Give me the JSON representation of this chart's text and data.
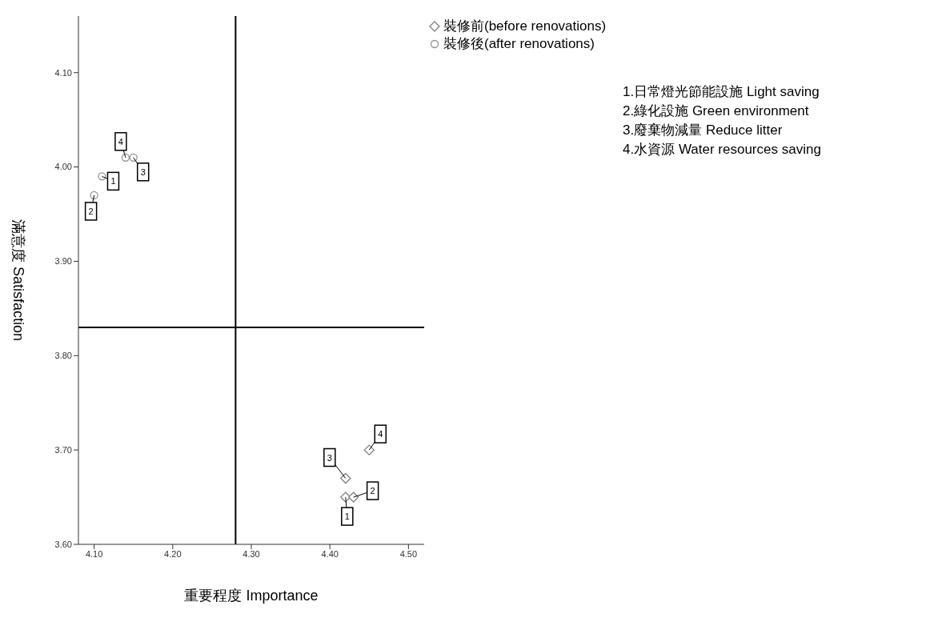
{
  "chart_data": {
    "type": "scatter",
    "xlabel": "重要程度  Importance",
    "ylabel": "滿意度 Satisfaction",
    "xlim": [
      4.08,
      4.52
    ],
    "xticks": [
      {
        "value": 4.1,
        "label": "4.10"
      },
      {
        "value": 4.2,
        "label": "4.20"
      },
      {
        "value": 4.3,
        "label": "4.30"
      },
      {
        "value": 4.4,
        "label": "4.40"
      },
      {
        "value": 4.5,
        "label": "4.50"
      }
    ],
    "ylim": [
      3.6,
      4.16
    ],
    "yticks": [
      {
        "value": 3.6,
        "label": "3.60"
      },
      {
        "value": 3.7,
        "label": "3.70"
      },
      {
        "value": 3.8,
        "label": "3.80"
      },
      {
        "value": 3.9,
        "label": "3.90"
      },
      {
        "value": 4.0,
        "label": "4.00"
      },
      {
        "value": 4.1,
        "label": "4.10"
      }
    ],
    "series": [
      {
        "name": "裝修前(before renovations)",
        "color": "#808080",
        "marker": "diamond",
        "x": [
          4.42,
          4.43,
          4.42,
          4.45
        ],
        "values": [
          3.65,
          3.65,
          3.67,
          3.7
        ]
      },
      {
        "name": "裝修後(after renovations)",
        "color": "#909090",
        "marker": "circle",
        "x": [
          4.11,
          4.1,
          4.15,
          4.14
        ],
        "values": [
          3.99,
          3.97,
          4.01,
          4.01
        ]
      }
    ],
    "ref_lines": [
      {
        "axis": "x",
        "value": 4.28,
        "color": "#000000"
      },
      {
        "axis": "y",
        "value": 3.83,
        "color": "#000000"
      }
    ],
    "grid": false,
    "legend": "top right",
    "annotations": [
      {
        "text": "1",
        "x": 4.42,
        "y": 3.65
      },
      {
        "text": "2",
        "x": 4.43,
        "y": 3.65
      },
      {
        "text": "3",
        "x": 4.42,
        "y": 3.67
      },
      {
        "text": "4",
        "x": 4.45,
        "y": 3.7
      },
      {
        "text": "1",
        "x": 4.11,
        "y": 3.99
      },
      {
        "text": "2",
        "x": 4.1,
        "y": 3.97
      },
      {
        "text": "3",
        "x": 4.15,
        "y": 4.01
      },
      {
        "text": "4",
        "x": 4.14,
        "y": 4.01
      },
      "1.日常燈光節能設施 Light saving",
      "2.綠化設施 Green environment",
      "3.廢棄物減量 Reduce litter",
      "4.水資源 Water resources saving"
    ]
  }
}
